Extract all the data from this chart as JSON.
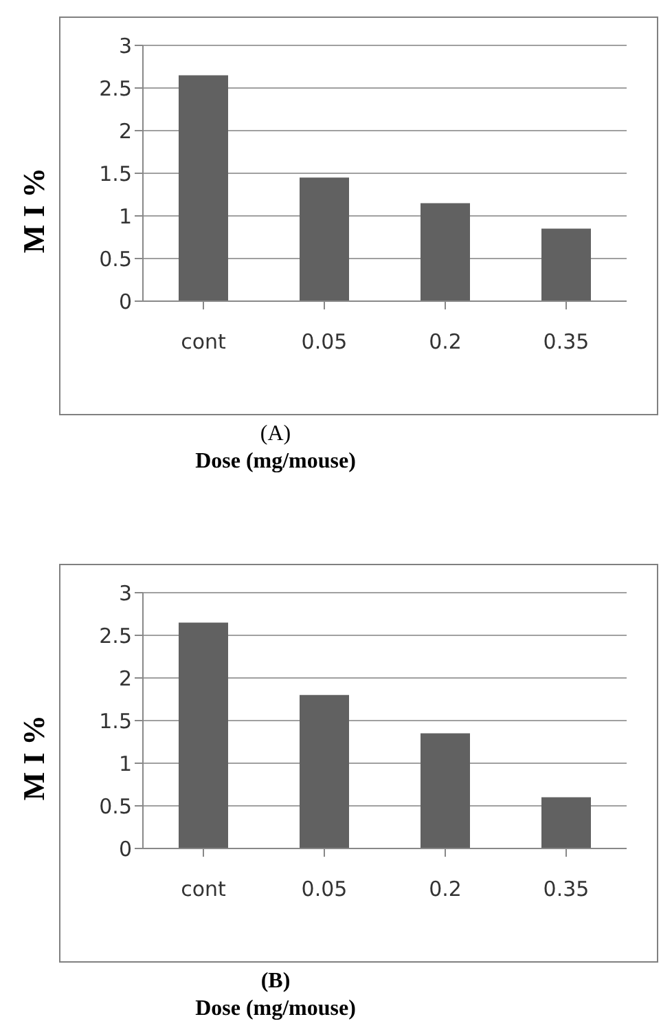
{
  "chart_data": [
    {
      "type": "bar",
      "xlabel": "Dose (mg/mouse)",
      "ylabel": "M I %",
      "annotations": [
        "(A)"
      ],
      "categories": [
        "cont",
        "0.05",
        "0.2",
        "0.35"
      ],
      "values": [
        2.65,
        1.45,
        1.15,
        0.85
      ],
      "color": "#616161",
      "ylim": [
        0,
        3
      ],
      "yticks": [
        0,
        0.5,
        1,
        1.5,
        2,
        2.5,
        3
      ],
      "grid": "y",
      "legend": false
    },
    {
      "type": "bar",
      "xlabel": "Dose (mg/mouse)",
      "ylabel": "M I %",
      "annotations": [
        "(B)"
      ],
      "categories": [
        "cont",
        "0.05",
        "0.2",
        "0.35"
      ],
      "values": [
        2.65,
        1.8,
        1.35,
        0.6
      ],
      "color": "#616161",
      "ylim": [
        0,
        3
      ],
      "yticks": [
        0,
        0.5,
        1,
        1.5,
        2,
        2.5,
        3
      ],
      "grid": "y",
      "legend": false
    }
  ]
}
